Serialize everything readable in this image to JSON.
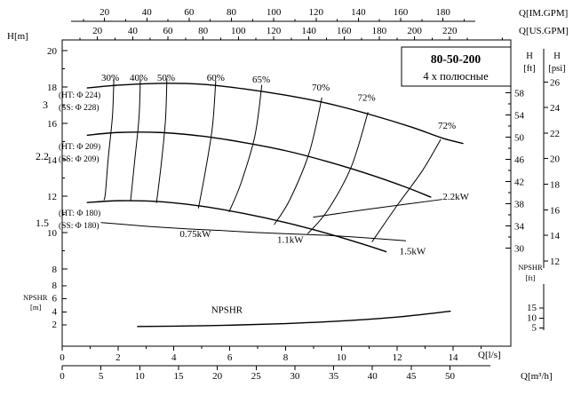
{
  "chart_data": {
    "type": "line",
    "title": "80-50-200",
    "subtitle": "4 х полюсные",
    "axes": {
      "x_top_imgpm": {
        "label": "Q[IM.GPM]",
        "ticks": [
          20,
          40,
          60,
          80,
          100,
          120,
          140,
          160,
          180
        ],
        "to_ls": 0.07577
      },
      "x_top_usgpm": {
        "label": "Q[US.GPM]",
        "ticks": [
          20,
          40,
          60,
          80,
          100,
          120,
          140,
          160,
          180,
          200,
          220
        ],
        "to_ls": 0.06309
      },
      "x_bottom_ls": {
        "label": "Q[l/s]",
        "ticks": [
          0,
          2,
          4,
          6,
          8,
          10,
          12,
          14
        ],
        "to_ls": 1
      },
      "x_bottom_m3h": {
        "label": "Q[m³/h]",
        "ticks": [
          0,
          5,
          10,
          15,
          20,
          25,
          30,
          35,
          40,
          45,
          50
        ],
        "to_ls": 0.27778
      },
      "y_left_m": {
        "label": "H[m]",
        "ticks": [
          8,
          10,
          12,
          14,
          16,
          18,
          20
        ],
        "to_m": 1,
        "range": [
          8,
          20
        ]
      },
      "y_right_ft": {
        "label_top": "H",
        "label_unit": "[ft]",
        "ticks": [
          30,
          34,
          38,
          42,
          46,
          50,
          54,
          58
        ],
        "to_m": 0.3048
      },
      "y_right_psi": {
        "label_top": "H",
        "label_unit": "[psi]",
        "ticks": [
          12,
          14,
          16,
          18,
          20,
          22,
          24,
          26
        ],
        "to_m": 0.70307
      },
      "y_npshr_m": {
        "label_top": "NPSHR",
        "label_unit": "[m]",
        "ticks": [
          2,
          4,
          6,
          8
        ]
      },
      "y_npshr_ft": {
        "label_top": "NPSHR",
        "label_unit": "[ft]",
        "ticks": [
          5,
          10,
          15
        ],
        "to_m": 0.3048
      }
    },
    "head_curves": [
      {
        "id": "224",
        "motor_kw": "3",
        "ht": "(HT: Φ 224)",
        "ss": "(SS: Φ 228)",
        "points": [
          [
            0.9,
            17.95
          ],
          [
            2,
            18.1
          ],
          [
            3.5,
            18.2
          ],
          [
            5,
            18.15
          ],
          [
            6.5,
            17.9
          ],
          [
            8,
            17.55
          ],
          [
            9.5,
            17.1
          ],
          [
            11,
            16.5
          ],
          [
            12.5,
            15.8
          ],
          [
            13.6,
            15.2
          ],
          [
            14.35,
            14.9
          ]
        ]
      },
      {
        "id": "209",
        "motor_kw": "2.2",
        "ht": "(HT: Φ 209)",
        "ss": "(SS: Φ 209)",
        "points": [
          [
            0.9,
            15.35
          ],
          [
            2,
            15.5
          ],
          [
            3.5,
            15.5
          ],
          [
            5,
            15.3
          ],
          [
            6.5,
            14.95
          ],
          [
            8,
            14.5
          ],
          [
            9.5,
            13.9
          ],
          [
            11,
            13.2
          ],
          [
            12.3,
            12.5
          ],
          [
            13.2,
            11.95
          ]
        ]
      },
      {
        "id": "180",
        "motor_kw": "1.5",
        "ht": "(HT: Φ 180)",
        "ss": "(SS: Φ 180)",
        "points": [
          [
            0.9,
            11.65
          ],
          [
            2,
            11.75
          ],
          [
            3.5,
            11.7
          ],
          [
            5,
            11.45
          ],
          [
            6.5,
            11.05
          ],
          [
            8,
            10.55
          ],
          [
            9.5,
            9.95
          ],
          [
            10.8,
            9.35
          ],
          [
            11.6,
            8.95
          ]
        ]
      }
    ],
    "efficiency_curves": [
      {
        "label": "30%",
        "label_pos": [
          1.72,
          18.35
        ],
        "points": [
          [
            1.85,
            18.45
          ],
          [
            1.8,
            16.4
          ],
          [
            1.65,
            14.1
          ],
          [
            1.55,
            12.2
          ],
          [
            1.5,
            11.8
          ]
        ]
      },
      {
        "label": "40%",
        "label_pos": [
          2.74,
          18.35
        ],
        "points": [
          [
            2.8,
            18.45
          ],
          [
            2.75,
            16.3
          ],
          [
            2.6,
            14.0
          ],
          [
            2.45,
            11.75
          ]
        ]
      },
      {
        "label": "50%",
        "label_pos": [
          3.72,
          18.35
        ],
        "points": [
          [
            3.75,
            18.45
          ],
          [
            3.7,
            16.2
          ],
          [
            3.55,
            13.8
          ],
          [
            3.38,
            11.65
          ]
        ]
      },
      {
        "label": "60%",
        "label_pos": [
          5.5,
          18.35
        ],
        "points": [
          [
            5.5,
            18.35
          ],
          [
            5.38,
            15.8
          ],
          [
            5.12,
            13.3
          ],
          [
            4.88,
            11.35
          ]
        ]
      },
      {
        "label": "65%",
        "label_pos": [
          7.13,
          18.25
        ],
        "points": [
          [
            7.15,
            18.1
          ],
          [
            6.9,
            15.3
          ],
          [
            6.4,
            12.7
          ],
          [
            5.98,
            11.15
          ]
        ]
      },
      {
        "label": "70%",
        "label_pos": [
          9.26,
          17.8
        ],
        "points": [
          [
            9.3,
            17.4
          ],
          [
            8.85,
            14.4
          ],
          [
            8.15,
            11.8
          ],
          [
            7.6,
            10.45
          ]
        ]
      },
      {
        "label": "72%",
        "label_pos": [
          10.9,
          17.25
        ],
        "points": [
          [
            10.95,
            16.6
          ],
          [
            10.35,
            13.6
          ],
          [
            9.5,
            11.2
          ],
          [
            8.8,
            9.95
          ]
        ]
      },
      {
        "label": "72%",
        "label_pos": [
          13.78,
          15.7
        ],
        "points": [
          [
            13.55,
            15.1
          ],
          [
            12.9,
            13.4
          ],
          [
            12.0,
            11.5
          ],
          [
            11.1,
            9.5
          ]
        ]
      }
    ],
    "power_curves": [
      {
        "label": "0.75kW",
        "label_pos": [
          4.77,
          9.75
        ],
        "points": [
          [
            1.4,
            10.55
          ],
          [
            3.0,
            10.35
          ],
          [
            4.5,
            10.2
          ],
          [
            5.6,
            10.12
          ]
        ]
      },
      {
        "label": "1.1kW",
        "label_pos": [
          8.17,
          9.45
        ],
        "points": [
          [
            5.6,
            10.12
          ],
          [
            7.0,
            10.0
          ],
          [
            8.6,
            9.9
          ],
          [
            9.5,
            9.85
          ]
        ]
      },
      {
        "label": "1.5kW",
        "label_pos": [
          12.55,
          8.8
        ],
        "points": [
          [
            9.5,
            9.85
          ],
          [
            10.8,
            9.72
          ],
          [
            12.3,
            9.55
          ]
        ]
      },
      {
        "label": "2.2kW",
        "label_pos": [
          14.1,
          11.8
        ],
        "points": [
          [
            9.0,
            10.85
          ],
          [
            10.8,
            11.25
          ],
          [
            12.5,
            11.6
          ],
          [
            13.6,
            11.82
          ]
        ]
      }
    ],
    "npshr_curve": {
      "label": "NPSHR",
      "label_pos": [
        5.9,
        3.85
      ],
      "points": [
        [
          2.7,
          1.75
        ],
        [
          4,
          1.8
        ],
        [
          6,
          1.95
        ],
        [
          8,
          2.2
        ],
        [
          10,
          2.6
        ],
        [
          12,
          3.2
        ],
        [
          13.9,
          4.1
        ]
      ]
    }
  }
}
